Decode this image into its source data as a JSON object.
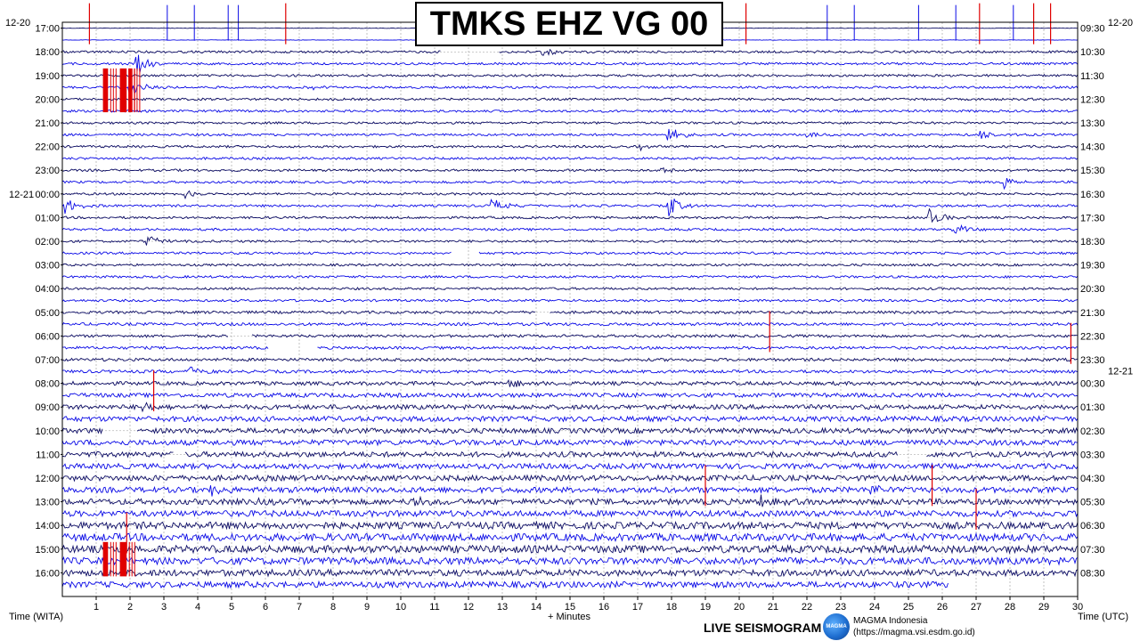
{
  "title": "TMKS EHZ VG 00",
  "left_axis_label": "Time (WITA)",
  "right_axis_label": "Time (UTC)",
  "x_axis_label": "+ Minutes",
  "left_date_top": "12-20",
  "right_date_top": "12-20",
  "footer": {
    "live_label": "LIVE SEISMOGRAM",
    "org_name": "MAGMA Indonesia",
    "org_url": "(https://magma.vsi.esdm.go.id)",
    "logo_text": "MAGMA"
  },
  "colors": {
    "trace_dark": "#0d0d66",
    "trace_blue": "#0a0ae6",
    "trace_mid": "#2626c8",
    "clip_red": "#e00000",
    "grid": "#9a9a9a",
    "axis": "#000000"
  },
  "chart_data": {
    "type": "line",
    "title": "TMKS EHZ VG 00",
    "xlabel": "+ Minutes",
    "xlim": [
      0,
      30
    ],
    "x_ticks": [
      "1",
      "2",
      "3",
      "4",
      "5",
      "6",
      "7",
      "8",
      "9",
      "10",
      "11",
      "12",
      "13",
      "14",
      "15",
      "16",
      "17",
      "18",
      "19",
      "20",
      "21",
      "22",
      "23",
      "24",
      "25",
      "26",
      "27",
      "28",
      "29",
      "30"
    ],
    "rows_count": 48,
    "left_labels": [
      "17:00",
      "18:00",
      "19:00",
      "20:00",
      "21:00",
      "22:00",
      "23:00",
      "00:00",
      "01:00",
      "02:00",
      "03:00",
      "04:00",
      "05:00",
      "06:00",
      "07:00",
      "08:00",
      "09:00",
      "10:00",
      "11:00",
      "12:00",
      "13:00",
      "14:00",
      "15:00",
      "16:00"
    ],
    "left_date_change": {
      "label_index": 7,
      "date": "12-21"
    },
    "right_labels": [
      "09:30",
      "10:30",
      "11:30",
      "12:30",
      "13:30",
      "14:30",
      "15:30",
      "16:30",
      "17:30",
      "18:30",
      "19:30",
      "20:30",
      "21:30",
      "22:30",
      "23:30",
      "00:30",
      "01:30",
      "02:30",
      "03:30",
      "04:30",
      "05:30",
      "06:30",
      "07:30",
      "08:30"
    ],
    "right_date_change": {
      "label_index": 15,
      "date": "12-21"
    },
    "row_colors": [
      "trace_dark",
      "trace_blue",
      "trace_dark",
      "trace_blue"
    ],
    "noise_level": [
      0.2,
      0.2,
      1,
      1,
      1,
      1,
      1,
      1,
      1,
      1,
      1,
      1,
      1,
      1,
      1,
      1,
      1,
      1,
      1,
      1,
      1,
      1,
      1,
      1,
      1.2,
      1.2,
      1.2,
      1.2,
      1.3,
      1.3,
      1.6,
      1.8,
      2,
      2.2,
      2.2,
      2.3,
      2.3,
      2.3,
      2.4,
      2.4,
      2.5,
      2.6,
      3,
      3.2,
      3.2,
      3,
      2.8,
      2.6
    ],
    "events": [
      {
        "row": 2,
        "minute": 14.2,
        "amp": 6
      },
      {
        "row": 3,
        "minute": 2.2,
        "amp": 12
      },
      {
        "row": 5,
        "minute": 2.0,
        "amp": 10
      },
      {
        "row": 5,
        "minute": 7.3,
        "amp": 3
      },
      {
        "row": 9,
        "minute": 17.9,
        "amp": 10
      },
      {
        "row": 9,
        "minute": 22.0,
        "amp": 4
      },
      {
        "row": 9,
        "minute": 27.1,
        "amp": 6
      },
      {
        "row": 10,
        "minute": 17.0,
        "amp": 4
      },
      {
        "row": 12,
        "minute": 17.7,
        "amp": 4
      },
      {
        "row": 13,
        "minute": 27.8,
        "amp": 9
      },
      {
        "row": 14,
        "minute": 3.6,
        "amp": 6
      },
      {
        "row": 15,
        "minute": 0.1,
        "amp": 9
      },
      {
        "row": 15,
        "minute": 12.7,
        "amp": 8
      },
      {
        "row": 15,
        "minute": 17.9,
        "amp": 13
      },
      {
        "row": 16,
        "minute": 25.6,
        "amp": 12
      },
      {
        "row": 17,
        "minute": 26.3,
        "amp": 9
      },
      {
        "row": 18,
        "minute": 2.5,
        "amp": 8
      },
      {
        "row": 29,
        "minute": 3.8,
        "amp": 8
      },
      {
        "row": 30,
        "minute": 11.1,
        "amp": 5
      },
      {
        "row": 30,
        "minute": 13.2,
        "amp": 8
      },
      {
        "row": 31,
        "minute": 17.0,
        "amp": 7
      },
      {
        "row": 32,
        "minute": 2.4,
        "amp": 5
      },
      {
        "row": 39,
        "minute": 4.4,
        "amp": 6
      },
      {
        "row": 39,
        "minute": 23.9,
        "amp": 7
      },
      {
        "row": 40,
        "minute": 5.7,
        "amp": 6
      },
      {
        "row": 40,
        "minute": 10.3,
        "amp": 9
      },
      {
        "row": 40,
        "minute": 20.6,
        "amp": 10
      }
    ],
    "clip_blocks": [
      {
        "row_start": 4.0,
        "row_end": 6.8,
        "minute": 1.2,
        "width": 0.15
      },
      {
        "row_start": 4.0,
        "row_end": 6.8,
        "minute": 1.7,
        "width": 0.2
      },
      {
        "row_start": 4.0,
        "row_end": 6.8,
        "minute": 1.95,
        "width": 0.1
      },
      {
        "row_start": 44.0,
        "row_end": 46.0,
        "minute": 1.2,
        "width": 0.15
      },
      {
        "row_start": 44.0,
        "row_end": 46.0,
        "minute": 1.7,
        "width": 0.2
      }
    ],
    "red_spikes": [
      {
        "row": 0,
        "minute": 0.8
      },
      {
        "row": 0,
        "minute": 6.6
      },
      {
        "row": 0,
        "minute": 17.8
      },
      {
        "row": 0,
        "minute": 20.2
      },
      {
        "row": 0,
        "minute": 27.1
      },
      {
        "row": 0,
        "minute": 28.7
      },
      {
        "row": 0,
        "minute": 29.2
      },
      {
        "row": 26,
        "minute": 20.9
      },
      {
        "row": 27,
        "minute": 29.8
      },
      {
        "row": 31,
        "minute": 2.7
      },
      {
        "row": 39,
        "minute": 19.0
      },
      {
        "row": 39,
        "minute": 25.7
      },
      {
        "row": 41,
        "minute": 27.0
      },
      {
        "row": 43,
        "minute": 1.9
      }
    ],
    "blue_spikes": [
      {
        "row": 0,
        "minute": 3.1
      },
      {
        "row": 0,
        "minute": 3.9
      },
      {
        "row": 0,
        "minute": 4.9
      },
      {
        "row": 0,
        "minute": 5.2
      },
      {
        "row": 0,
        "minute": 17.1
      },
      {
        "row": 0,
        "minute": 22.6
      },
      {
        "row": 0,
        "minute": 23.4
      },
      {
        "row": 0,
        "minute": 25.3
      },
      {
        "row": 0,
        "minute": 26.4
      },
      {
        "row": 0,
        "minute": 28.1
      }
    ],
    "gaps": [
      {
        "row": 2,
        "from": 11.2,
        "to": 12.9
      },
      {
        "row": 19,
        "from": 11.5,
        "to": 12.3
      },
      {
        "row": 24,
        "from": 14.0,
        "to": 14.4
      },
      {
        "row": 26,
        "from": 4.9,
        "to": 5.6
      },
      {
        "row": 27,
        "from": 6.1,
        "to": 7.5
      },
      {
        "row": 34,
        "from": 1.2,
        "to": 2.2
      },
      {
        "row": 36,
        "from": 3.3,
        "to": 3.6
      },
      {
        "row": 36,
        "from": 24.7,
        "to": 25.5
      },
      {
        "row": 47,
        "from": 26.2,
        "to": 30.0
      }
    ]
  }
}
